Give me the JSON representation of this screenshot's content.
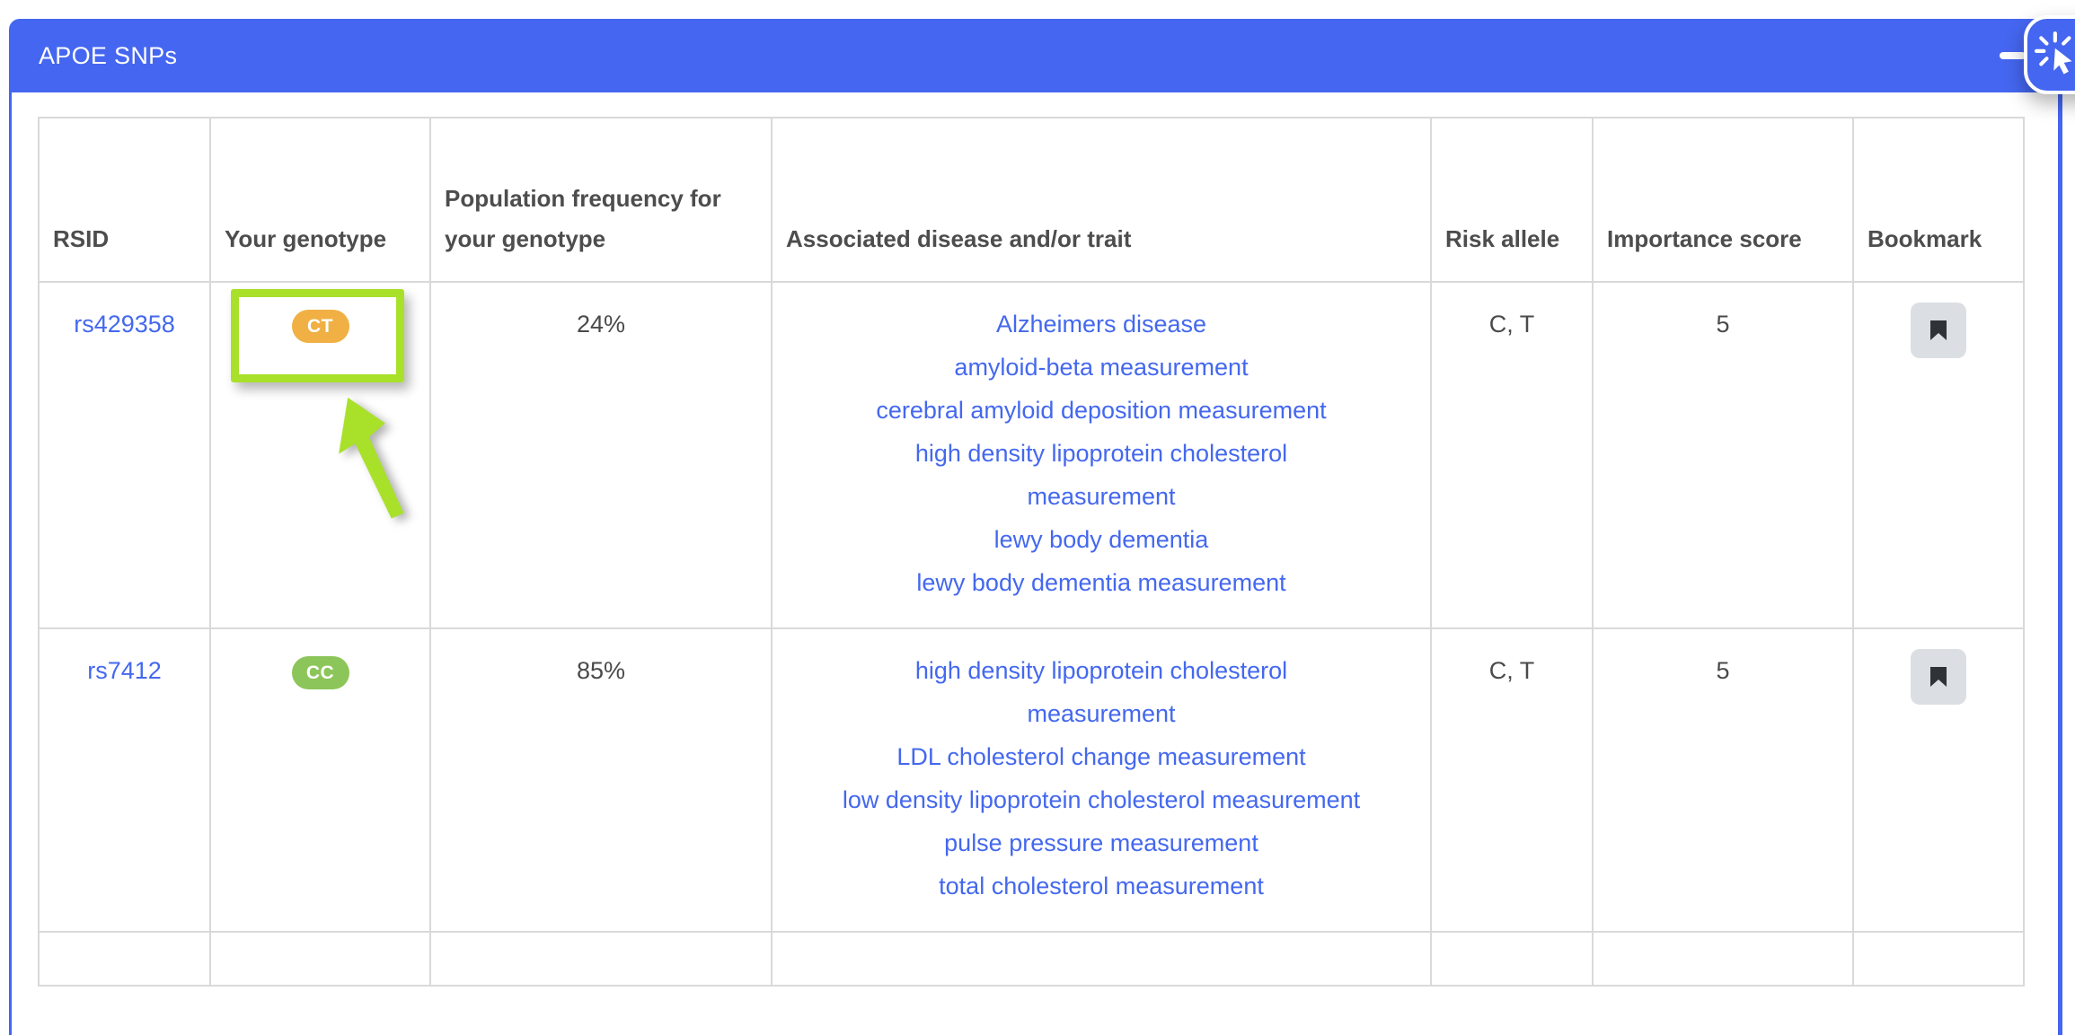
{
  "window": {
    "title": "APOE SNPs"
  },
  "table": {
    "columns": [
      {
        "key": "rsid",
        "label": "RSID"
      },
      {
        "key": "genotype",
        "label": "Your genotype"
      },
      {
        "key": "frequency",
        "label": "Population frequency for your genotype"
      },
      {
        "key": "diseases",
        "label": "Associated disease and/or trait"
      },
      {
        "key": "risk_allele",
        "label": "Risk allele"
      },
      {
        "key": "importance",
        "label": "Importance score"
      },
      {
        "key": "bookmark",
        "label": "Bookmark"
      }
    ],
    "rows": [
      {
        "rsid": "rs429358",
        "genotype": "CT",
        "genotype_color": "#f0b044",
        "frequency": "24%",
        "diseases": [
          "Alzheimers disease",
          "amyloid-beta measurement",
          "cerebral amyloid deposition measurement",
          "high density lipoprotein cholesterol measurement",
          "lewy body dementia",
          "lewy body dementia measurement"
        ],
        "risk_allele": "C, T",
        "importance": "5",
        "highlighted": true
      },
      {
        "rsid": "rs7412",
        "genotype": "CC",
        "genotype_color": "#8cc559",
        "frequency": "85%",
        "diseases": [
          "high density lipoprotein cholesterol measurement",
          "LDL cholesterol change measurement",
          "low density lipoprotein cholesterol measurement",
          "pulse pressure measurement",
          "total cholesterol measurement"
        ],
        "risk_allele": "C, T",
        "importance": "5",
        "highlighted": false
      }
    ]
  },
  "annotations": {
    "highlighted_value": "CT",
    "highlight_color": "#a8e02a"
  },
  "colors": {
    "accent_blue": "#4566f0",
    "link_blue": "#4468ee",
    "header_text": "#4d4d4d",
    "body_text": "#4a4a4a",
    "table_border": "#d9d9d9",
    "badge_orange": "#f0b044",
    "badge_green": "#8cc559",
    "bookmark_bg": "#dbdfe3",
    "bookmark_icon": "#2f3237"
  }
}
